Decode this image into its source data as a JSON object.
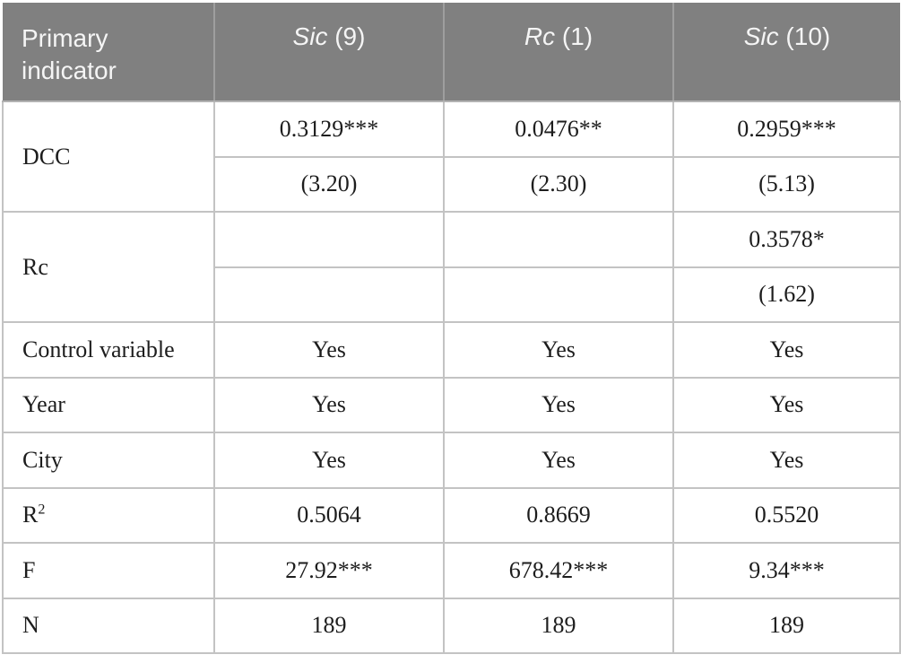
{
  "colors": {
    "header_bg": "#808080",
    "header_divider": "#9e9e9e",
    "header_text": "#f5f5f5",
    "grid_border": "#c3c3c3",
    "body_text": "#1d1d1d",
    "page_bg": "#ffffff"
  },
  "table": {
    "header": {
      "label_col": "Primary indicator",
      "columns": [
        {
          "var": "Sic",
          "rest": "(9)"
        },
        {
          "var": "Rc",
          "rest": "(1)"
        },
        {
          "var": "Sic",
          "rest": "(10)"
        }
      ]
    },
    "coef_rows": [
      {
        "label": "DCC",
        "values": [
          "0.3129***",
          "0.0476**",
          "0.2959***"
        ],
        "tstats": [
          "(3.20)",
          "(2.30)",
          "(5.13)"
        ]
      },
      {
        "label": "Rc",
        "values": [
          "",
          "",
          "0.3578*"
        ],
        "tstats": [
          "",
          "",
          "(1.62)"
        ]
      }
    ],
    "simple_rows": [
      {
        "label": "Control variable",
        "sup": "",
        "values": [
          "Yes",
          "Yes",
          "Yes"
        ]
      },
      {
        "label": "Year",
        "sup": "",
        "values": [
          "Yes",
          "Yes",
          "Yes"
        ]
      },
      {
        "label": "City",
        "sup": "",
        "values": [
          "Yes",
          "Yes",
          "Yes"
        ]
      },
      {
        "label": "R",
        "sup": "2",
        "values": [
          "0.5064",
          "0.8669",
          "0.5520"
        ]
      },
      {
        "label": "F",
        "sup": "",
        "values": [
          "27.92***",
          "678.42***",
          "9.34***"
        ]
      },
      {
        "label": "N",
        "sup": "",
        "values": [
          "189",
          "189",
          "189"
        ]
      }
    ]
  }
}
